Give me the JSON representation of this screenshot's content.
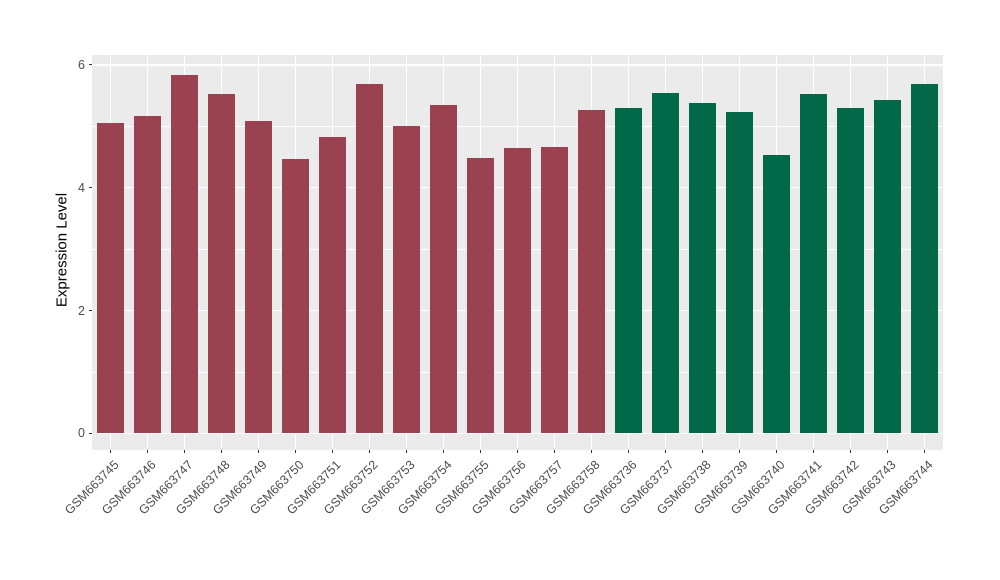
{
  "chart_data": {
    "type": "bar",
    "title": "",
    "xlabel": "",
    "ylabel": "Expression Level",
    "categories": [
      "GSM663745",
      "GSM663746",
      "GSM663747",
      "GSM663748",
      "GSM663749",
      "GSM663750",
      "GSM663751",
      "GSM663752",
      "GSM663753",
      "GSM663754",
      "GSM663755",
      "GSM663756",
      "GSM663757",
      "GSM663758",
      "GSM663736",
      "GSM663737",
      "GSM663738",
      "GSM663739",
      "GSM663740",
      "GSM663741",
      "GSM663742",
      "GSM663743",
      "GSM663744"
    ],
    "values": [
      5.05,
      5.17,
      5.83,
      5.52,
      5.08,
      4.46,
      4.82,
      5.69,
      5.0,
      5.34,
      4.48,
      4.65,
      4.67,
      5.26,
      5.29,
      5.54,
      5.38,
      5.24,
      4.53,
      5.52,
      5.3,
      5.43,
      5.69
    ],
    "groups": [
      {
        "color": "#9A4250",
        "count": 14
      },
      {
        "color": "#016948",
        "count": 9
      }
    ],
    "yticks": [
      0,
      2,
      4,
      6
    ],
    "yminorticks": [
      1,
      3,
      5
    ],
    "ylim": [
      -0.27,
      6.16
    ],
    "legend_position": "none",
    "style": {
      "panel_background": "#EBEBEB",
      "gridline_color": "#FFFFFF",
      "tick_mark_color": "#333333",
      "axis_text_color": "#4D4D4D",
      "axis_title_color": "#000000",
      "figure_background": "#FFFFFF"
    },
    "x_label_rotation_deg": 45
  }
}
